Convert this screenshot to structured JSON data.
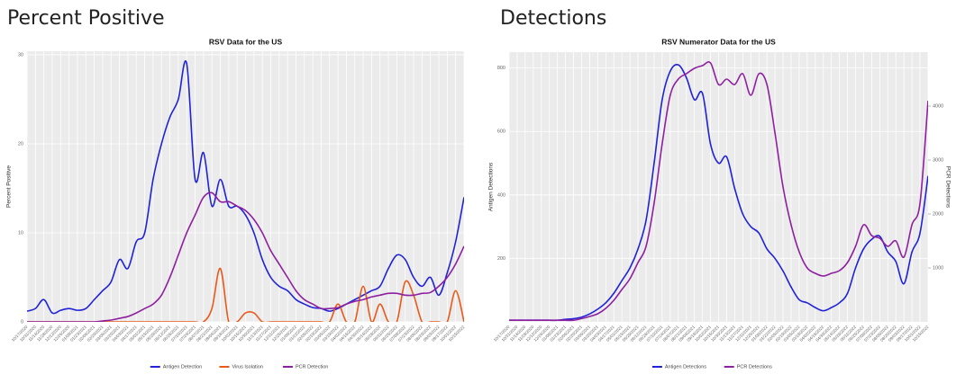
{
  "headings": [
    "Percent Positive",
    "Detections"
  ],
  "chart_data": [
    {
      "type": "line",
      "title": "RSV Data for the US",
      "ylabel": "Percent Positive",
      "categories": [
        "10/17/2020",
        "10/31/2020",
        "11/14/2020",
        "11/28/2020",
        "12/12/2020",
        "12/26/2020",
        "01/09/2021",
        "01/23/2021",
        "02/06/2021",
        "02/20/2021",
        "03/06/2021",
        "03/20/2021",
        "04/03/2021",
        "04/17/2021",
        "05/01/2021",
        "05/15/2021",
        "05/29/2021",
        "06/12/2021",
        "06/26/2021",
        "07/10/2021",
        "07/24/2021",
        "08/07/2021",
        "08/21/2021",
        "09/04/2021",
        "09/18/2021",
        "10/02/2021",
        "10/16/2021",
        "10/30/2021",
        "11/13/2021",
        "11/27/2021",
        "12/11/2021",
        "12/25/2021",
        "01/08/2022",
        "01/22/2022",
        "02/05/2022",
        "02/19/2022",
        "03/05/2022",
        "03/19/2022",
        "04/02/2022",
        "04/16/2022",
        "04/30/2022",
        "05/14/2022",
        "05/28/2022",
        "06/11/2022",
        "06/25/2022",
        "07/09/2022",
        "07/23/2022",
        "08/06/2022",
        "08/20/2022",
        "09/03/2022",
        "09/17/2022",
        "10/01/2022",
        "10/15/2022"
      ],
      "series": [
        {
          "name": "Antigen Detection",
          "color": "#1f22d6",
          "values": [
            1.2,
            1.5,
            2.5,
            1.0,
            1.3,
            1.5,
            1.3,
            1.5,
            2.5,
            3.5,
            4.5,
            7,
            6,
            9,
            10,
            16,
            20,
            23,
            25,
            29,
            16,
            19,
            13,
            16,
            13,
            13,
            12,
            10,
            7,
            5,
            4,
            3.5,
            2.5,
            2,
            1.6,
            1.5,
            1.2,
            1.5,
            2,
            2.5,
            3,
            3.5,
            4,
            6,
            7.5,
            7,
            5,
            4,
            5,
            3,
            5.5,
            9,
            14
          ]
        },
        {
          "name": "Virus Isolation",
          "color": "#e8591a",
          "values": [
            0,
            0,
            0,
            0,
            0,
            0,
            0,
            0,
            0,
            0,
            0,
            0,
            0,
            0,
            0,
            0,
            0,
            0,
            0,
            0,
            0,
            0,
            1.5,
            6,
            0,
            0,
            1,
            1,
            0,
            0,
            0,
            0,
            0,
            0,
            0,
            0,
            0,
            2,
            0,
            0,
            4,
            0,
            2,
            0,
            0,
            4.5,
            3,
            0,
            0,
            0,
            0,
            3.5,
            0
          ]
        },
        {
          "name": "PCR Detection",
          "color": "#8e1fa0",
          "values": [
            0,
            0,
            0,
            0,
            0,
            0,
            0,
            0,
            0,
            0.1,
            0.2,
            0.4,
            0.6,
            1,
            1.5,
            2,
            3,
            5,
            7.5,
            10,
            12,
            14,
            14.5,
            13.5,
            13.5,
            13,
            12.5,
            11.5,
            10,
            8,
            6.5,
            5,
            3.5,
            2.5,
            2,
            1.5,
            1.5,
            1.6,
            2,
            2.3,
            2.5,
            2.8,
            3,
            3.2,
            3.2,
            3,
            3,
            3.2,
            3.3,
            4,
            5,
            6.5,
            8.5
          ]
        }
      ],
      "ylim": [
        0,
        30.4
      ],
      "yticks": [
        0,
        10,
        20,
        30
      ],
      "grid": true
    },
    {
      "type": "line",
      "title": "RSV Numerator Data for the US",
      "ylabel": "Antigen Detections",
      "y2label": "PCR Detections",
      "categories": [
        "10/17/2020",
        "10/31/2020",
        "11/14/2020",
        "11/28/2020",
        "12/12/2020",
        "12/26/2020",
        "01/09/2021",
        "01/23/2021",
        "02/06/2021",
        "02/20/2021",
        "03/06/2021",
        "03/20/2021",
        "04/03/2021",
        "04/17/2021",
        "05/01/2021",
        "05/15/2021",
        "05/29/2021",
        "06/12/2021",
        "06/26/2021",
        "07/10/2021",
        "07/24/2021",
        "08/07/2021",
        "08/21/2021",
        "09/04/2021",
        "09/18/2021",
        "10/02/2021",
        "10/16/2021",
        "10/30/2021",
        "11/13/2021",
        "11/27/2021",
        "12/11/2021",
        "12/25/2021",
        "01/08/2022",
        "01/22/2022",
        "02/05/2022",
        "02/19/2022",
        "03/05/2022",
        "03/19/2022",
        "04/02/2022",
        "04/16/2022",
        "04/30/2022",
        "05/14/2022",
        "05/28/2022",
        "06/11/2022",
        "06/25/2022",
        "07/09/2022",
        "07/23/2022",
        "08/06/2022",
        "08/20/2022",
        "09/03/2022",
        "09/17/2022",
        "10/01/2022",
        "10/15/2022"
      ],
      "series": [
        {
          "name": "Antigen Detections",
          "color": "#1f22d6",
          "values": [
            5,
            5,
            5,
            5,
            5,
            5,
            5,
            8,
            10,
            15,
            25,
            40,
            60,
            90,
            130,
            170,
            230,
            320,
            500,
            700,
            790,
            810,
            770,
            700,
            720,
            560,
            500,
            520,
            420,
            340,
            300,
            280,
            230,
            200,
            160,
            110,
            70,
            60,
            45,
            35,
            45,
            60,
            90,
            170,
            230,
            260,
            270,
            220,
            190,
            120,
            220,
            280,
            460
          ]
        },
        {
          "name": "PCR Detections",
          "color": "#8e1fa0",
          "axis": "y2",
          "values": [
            30,
            30,
            30,
            30,
            30,
            30,
            30,
            30,
            30,
            60,
            100,
            150,
            250,
            400,
            600,
            800,
            1100,
            1400,
            2200,
            3300,
            4200,
            4500,
            4600,
            4700,
            4750,
            4800,
            4400,
            4500,
            4400,
            4600,
            4200,
            4600,
            4400,
            3500,
            2500,
            1800,
            1300,
            1000,
            900,
            850,
            900,
            950,
            1100,
            1400,
            1800,
            1600,
            1550,
            1400,
            1500,
            1200,
            1800,
            2200,
            4100
          ]
        }
      ],
      "ylim": [
        0,
        850
      ],
      "yticks": [
        200,
        400,
        600,
        800
      ],
      "y2lim": [
        0,
        5000
      ],
      "y2ticks": [
        1000,
        2000,
        3000,
        4000
      ],
      "grid": true
    }
  ]
}
